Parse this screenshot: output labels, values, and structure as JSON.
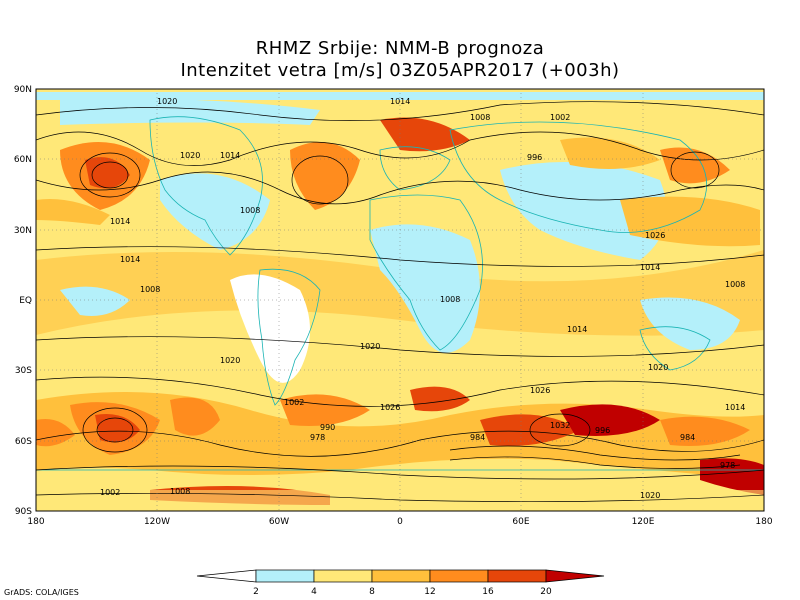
{
  "title": {
    "line1": "RHMZ Srbije: NMM-B prognoza",
    "line2": "Intenzitet vetra [m/s] 03Z05APR2017 (+003h)"
  },
  "axes": {
    "lon_ticks": [
      "180",
      "120W",
      "60W",
      "0",
      "60E",
      "120E",
      "180"
    ],
    "lat_ticks": [
      "90N",
      "60N",
      "30N",
      "EQ",
      "30S",
      "60S",
      "90S"
    ]
  },
  "colorbar": {
    "levels": [
      "2",
      "4",
      "8",
      "12",
      "16",
      "20"
    ],
    "colors": [
      "#ffffff",
      "#b4f0fa",
      "#ffe878",
      "#ffc03c",
      "#ff8c1e",
      "#e6460a",
      "#c00000"
    ]
  },
  "pressure_labels": [
    "1020",
    "1014",
    "1008",
    "1002",
    "996",
    "990",
    "984",
    "978",
    "1026",
    "1032"
  ],
  "credit": "GrADS: COLA/IGES"
}
